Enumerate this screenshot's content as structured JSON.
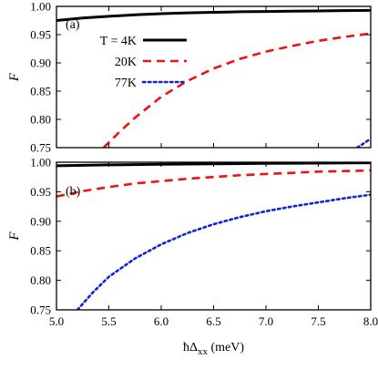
{
  "chart_data": [
    {
      "type": "line",
      "panel_label": "(a)",
      "ylabel": "F",
      "xlim": [
        5.0,
        8.0
      ],
      "ylim": [
        0.75,
        1.0
      ],
      "x_ticks": [
        "5.0",
        "5.5",
        "6.0",
        "6.5",
        "7.0",
        "7.5",
        "8.0"
      ],
      "y_ticks": [
        "0.75",
        "0.80",
        "0.85",
        "0.90",
        "0.95",
        "1.00"
      ],
      "x_tick_values": [
        5.0,
        5.5,
        6.0,
        6.5,
        7.0,
        7.5,
        8.0
      ],
      "y_tick_values": [
        0.75,
        0.8,
        0.85,
        0.9,
        0.95,
        1.0
      ],
      "legend_position": "top-left",
      "series": [
        {
          "name": "T = 4K",
          "color": "#000000",
          "style": "solid",
          "x": [
            5.0,
            5.25,
            5.5,
            5.75,
            6.0,
            6.25,
            6.5,
            6.75,
            7.0,
            7.25,
            7.5,
            7.75,
            8.0
          ],
          "y": [
            0.975,
            0.9795,
            0.9825,
            0.985,
            0.987,
            0.9885,
            0.9895,
            0.9905,
            0.991,
            0.9915,
            0.992,
            0.9925,
            0.993
          ]
        },
        {
          "name": "20K",
          "color": "#ee1111",
          "style": "dashed",
          "x": [
            5.45,
            5.6,
            5.75,
            6.0,
            6.25,
            6.5,
            6.75,
            7.0,
            7.25,
            7.5,
            7.75,
            8.0
          ],
          "y": [
            0.75,
            0.7775,
            0.803,
            0.84,
            0.868,
            0.89,
            0.907,
            0.92,
            0.93,
            0.939,
            0.946,
            0.952
          ]
        },
        {
          "name": "77K",
          "color": "#1122dd",
          "style": "dotted",
          "x": [
            7.87,
            7.93,
            8.0
          ],
          "y": [
            0.75,
            0.757,
            0.766
          ]
        }
      ]
    },
    {
      "type": "line",
      "panel_label": "(b)",
      "ylabel": "F",
      "xlabel": "ħΔ",
      "xlabel_sub": "xx",
      "xlabel_unit": " (meV)",
      "xlim": [
        5.0,
        8.0
      ],
      "ylim": [
        0.75,
        1.0
      ],
      "x_ticks": [
        "5.0",
        "5.5",
        "6.0",
        "6.5",
        "7.0",
        "7.5",
        "8.0"
      ],
      "y_ticks": [
        "0.75",
        "0.80",
        "0.85",
        "0.90",
        "0.95",
        "1.00"
      ],
      "x_tick_values": [
        5.0,
        5.5,
        6.0,
        6.5,
        7.0,
        7.5,
        8.0
      ],
      "y_tick_values": [
        0.75,
        0.8,
        0.85,
        0.9,
        0.95,
        1.0
      ],
      "series": [
        {
          "color": "#000000",
          "style": "solid",
          "x": [
            5.0,
            5.5,
            6.0,
            6.5,
            7.0,
            7.5,
            8.0
          ],
          "y": [
            0.994,
            0.9955,
            0.9965,
            0.9973,
            0.998,
            0.9985,
            0.999
          ]
        },
        {
          "color": "#ee1111",
          "style": "dashed",
          "x": [
            5.0,
            5.25,
            5.5,
            5.75,
            6.0,
            6.25,
            6.5,
            6.75,
            7.0,
            7.25,
            7.5,
            7.75,
            8.0
          ],
          "y": [
            0.942,
            0.951,
            0.958,
            0.964,
            0.968,
            0.972,
            0.975,
            0.978,
            0.98,
            0.982,
            0.984,
            0.985,
            0.986
          ]
        },
        {
          "color": "#1122dd",
          "style": "dotted",
          "x": [
            5.2,
            5.35,
            5.5,
            5.75,
            6.0,
            6.25,
            6.5,
            6.75,
            7.0,
            7.25,
            7.5,
            7.75,
            8.0
          ],
          "y": [
            0.75,
            0.78,
            0.806,
            0.837,
            0.861,
            0.88,
            0.895,
            0.907,
            0.917,
            0.925,
            0.932,
            0.939,
            0.945
          ]
        }
      ]
    }
  ]
}
